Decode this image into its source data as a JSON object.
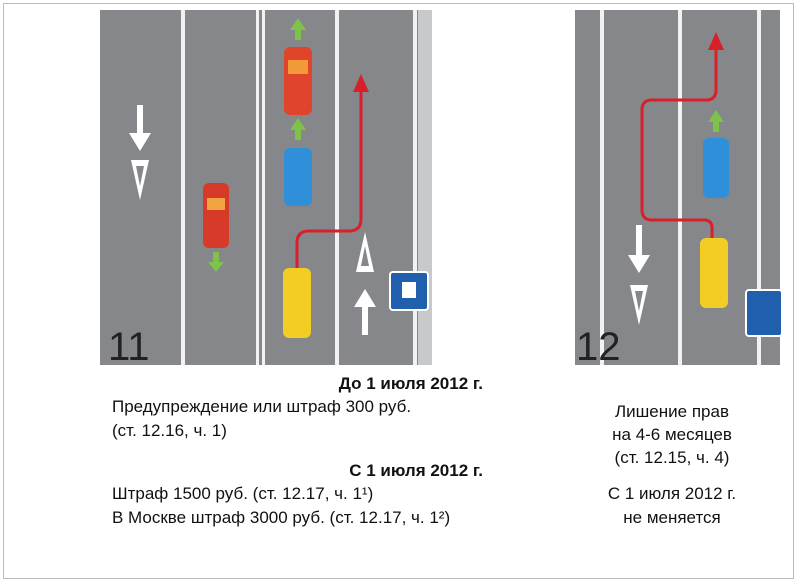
{
  "figures": [
    {
      "label": "11"
    },
    {
      "label": "12"
    }
  ],
  "left": {
    "before_heading": "До 1 июля 2012 г.",
    "before_lines": [
      "Предупреждение или штраф 300 руб.",
      "(ст. 12.16, ч. 1)"
    ],
    "after_heading": "С 1 июля 2012 г.",
    "after_lines": [
      "Штраф 1500 руб. (ст. 12.17, ч. 1¹)",
      "В Москве штраф 3000 руб. (ст. 12.17, ч. 1²)"
    ]
  },
  "right": {
    "lines": [
      "Лишение прав",
      "на 4-6 месяцев",
      "(ст. 12.15, ч. 4)"
    ],
    "after_lines": [
      "С 1 июля  2012 г.",
      "не меняется"
    ]
  }
}
